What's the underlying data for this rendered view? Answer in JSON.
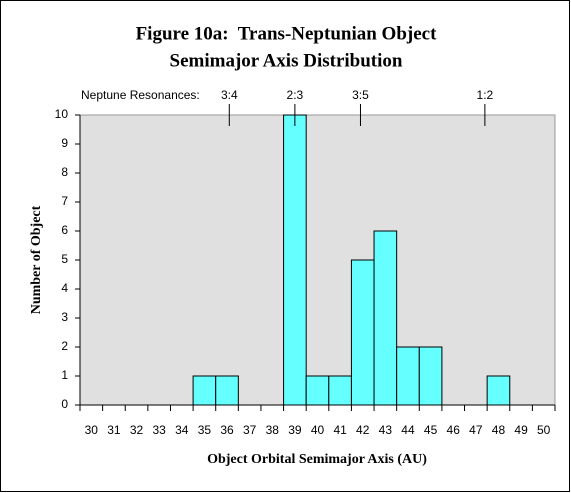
{
  "chart_data": {
    "type": "bar",
    "title": [
      "Figure 10a:  Trans-Neptunian Object",
      "Semimajor Axis Distribution"
    ],
    "x_label": "Object Orbital Semimajor Axis (AU)",
    "y_label": "Number of Object",
    "categories": [
      "30",
      "31",
      "32",
      "33",
      "34",
      "35",
      "36",
      "37",
      "38",
      "39",
      "40",
      "41",
      "42",
      "43",
      "44",
      "45",
      "46",
      "47",
      "48",
      "49",
      "50"
    ],
    "values": [
      0,
      0,
      0,
      0,
      0,
      1,
      1,
      0,
      0,
      10,
      1,
      1,
      5,
      6,
      2,
      2,
      0,
      0,
      1,
      0,
      0
    ],
    "color": "#66ffff",
    "ylim": [
      0,
      10
    ],
    "yticks": [
      0,
      1,
      2,
      3,
      4,
      5,
      6,
      7,
      8,
      9,
      10
    ],
    "grid": false,
    "resonance_title": "Neptune Resonances:",
    "resonances": [
      {
        "label": "3:4",
        "x": 36.1
      },
      {
        "label": "2:3",
        "x": 39.0
      },
      {
        "label": "3:5",
        "x": 41.9
      },
      {
        "label": "1:2",
        "x": 47.4
      }
    ]
  }
}
